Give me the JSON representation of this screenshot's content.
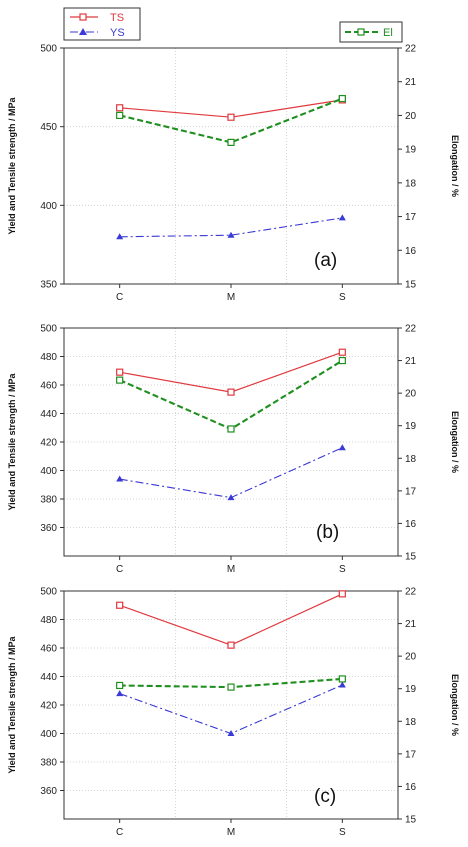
{
  "legend_left": [
    {
      "key": "TS",
      "label": "TS",
      "color": "#e0393e",
      "marker": "square",
      "dash": "solid"
    },
    {
      "key": "YS",
      "label": "YS",
      "color": "#3a3ad6",
      "marker": "triangle",
      "dash": "dashdot"
    }
  ],
  "legend_right": [
    {
      "key": "El",
      "label": "El",
      "color": "#1f8f1f",
      "marker": "square",
      "dash": "dash"
    }
  ],
  "chart_data": [
    {
      "type": "line",
      "panel_label": "(a)",
      "categories": [
        "C",
        "M",
        "S"
      ],
      "ylabel": "Yield and Tensile strength / MPa",
      "y2label": "Elongation / %",
      "ylim": [
        350,
        500
      ],
      "yticks": [
        350,
        400,
        450,
        500
      ],
      "y2lim": [
        15,
        22
      ],
      "y2ticks": [
        15,
        16,
        17,
        18,
        19,
        20,
        21,
        22
      ],
      "series": [
        {
          "name": "TS",
          "axis": "left",
          "values": [
            462,
            456,
            467
          ]
        },
        {
          "name": "YS",
          "axis": "left",
          "values": [
            380,
            381,
            392
          ]
        },
        {
          "name": "El",
          "axis": "right",
          "values": [
            20.0,
            19.2,
            20.5
          ]
        }
      ]
    },
    {
      "type": "line",
      "panel_label": "(b)",
      "categories": [
        "C",
        "M",
        "S"
      ],
      "ylabel": "Yield and Tensile strength / MPa",
      "y2label": "Elongation / %",
      "ylim": [
        340,
        500
      ],
      "yticks": [
        360,
        380,
        400,
        420,
        440,
        460,
        480,
        500
      ],
      "y2lim": [
        15,
        22
      ],
      "y2ticks": [
        15,
        16,
        17,
        18,
        19,
        20,
        21,
        22
      ],
      "series": [
        {
          "name": "TS",
          "axis": "left",
          "values": [
            469,
            455,
            483
          ]
        },
        {
          "name": "YS",
          "axis": "left",
          "values": [
            394,
            381,
            416
          ]
        },
        {
          "name": "El",
          "axis": "right",
          "values": [
            20.4,
            18.9,
            21.0
          ]
        }
      ]
    },
    {
      "type": "line",
      "panel_label": "(c)",
      "categories": [
        "C",
        "M",
        "S"
      ],
      "ylabel": "Yield and Tensile strength / MPa",
      "y2label": "Elongation / %",
      "ylim": [
        340,
        500
      ],
      "yticks": [
        360,
        380,
        400,
        420,
        440,
        460,
        480,
        500
      ],
      "y2lim": [
        15,
        22
      ],
      "y2ticks": [
        15,
        16,
        17,
        18,
        19,
        20,
        21,
        22
      ],
      "series": [
        {
          "name": "TS",
          "axis": "left",
          "values": [
            490,
            462,
            498
          ]
        },
        {
          "name": "YS",
          "axis": "left",
          "values": [
            428,
            400,
            434
          ]
        },
        {
          "name": "El",
          "axis": "right",
          "values": [
            19.1,
            19.05,
            19.3
          ]
        }
      ]
    }
  ]
}
